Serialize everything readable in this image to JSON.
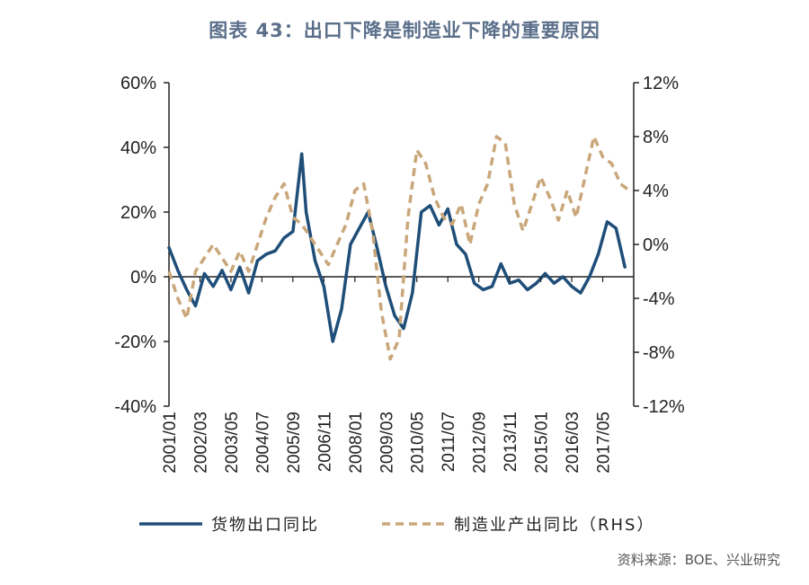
{
  "header": {
    "title": "图表 43：出口下降是制造业下降的重要原因"
  },
  "source": "资料来源：BOE、兴业研究",
  "colors": {
    "title": "#5b6f8a",
    "series1": "#1f4e79",
    "series2": "#c9a77a",
    "axis": "#222222"
  },
  "chart_data": {
    "type": "line",
    "title": "图表 43：出口下降是制造业下降的重要原因",
    "y_left": {
      "ylim": [
        -40,
        60
      ],
      "ticks": [
        "-40%",
        "-20%",
        "0%",
        "20%",
        "40%",
        "60%"
      ]
    },
    "y_right": {
      "ylim": [
        -12,
        12
      ],
      "ticks": [
        "-12%",
        "-8%",
        "-4%",
        "0%",
        "4%",
        "8%",
        "12%"
      ]
    },
    "x_ticks": [
      "2001/01",
      "2002/03",
      "2003/05",
      "2004/07",
      "2005/09",
      "2006/11",
      "2008/01",
      "2009/03",
      "2010/05",
      "2011/07",
      "2012/09",
      "2013/11",
      "2015/01",
      "2016/03",
      "2017/05"
    ],
    "legend": {
      "position": "bottom"
    },
    "series": [
      {
        "name": "货物出口同比",
        "axis": "left",
        "style": "solid",
        "x": [
          "2001/01",
          "2001/05",
          "2001/09",
          "2002/01",
          "2002/05",
          "2002/09",
          "2003/01",
          "2003/05",
          "2003/09",
          "2004/01",
          "2004/05",
          "2004/09",
          "2005/01",
          "2005/05",
          "2005/09",
          "2006/01",
          "2006/03",
          "2006/07",
          "2006/11",
          "2007/03",
          "2007/07",
          "2007/11",
          "2008/03",
          "2008/07",
          "2008/11",
          "2009/03",
          "2009/07",
          "2009/11",
          "2010/03",
          "2010/07",
          "2010/11",
          "2011/03",
          "2011/07",
          "2011/11",
          "2012/03",
          "2012/07",
          "2012/11",
          "2013/03",
          "2013/07",
          "2013/11",
          "2014/03",
          "2014/07",
          "2014/11",
          "2015/03",
          "2015/07",
          "2015/11",
          "2016/03",
          "2016/07",
          "2016/11",
          "2017/03",
          "2017/07",
          "2017/11",
          "2018/03"
        ],
        "values": [
          9,
          2,
          -4,
          -9,
          1,
          -3,
          2,
          -4,
          3,
          -5,
          5,
          7,
          8,
          12,
          14,
          38,
          20,
          5,
          -3,
          -20,
          -10,
          10,
          15,
          20,
          9,
          -3,
          -12,
          -16,
          -5,
          20,
          22,
          16,
          21,
          10,
          7,
          -2,
          -4,
          -3,
          4,
          -2,
          -1,
          -4,
          -2,
          1,
          -2,
          0,
          -3,
          -5,
          0,
          7,
          17,
          15,
          3
        ]
      },
      {
        "name": "制造业产出同比（RHS）",
        "axis": "right",
        "style": "dashed",
        "x": [
          "2001/01",
          "2001/05",
          "2001/09",
          "2002/01",
          "2002/05",
          "2002/09",
          "2003/01",
          "2003/05",
          "2003/09",
          "2004/01",
          "2004/05",
          "2004/09",
          "2005/01",
          "2005/05",
          "2005/09",
          "2006/01",
          "2006/05",
          "2006/09",
          "2007/01",
          "2007/05",
          "2007/09",
          "2008/01",
          "2008/05",
          "2008/09",
          "2009/01",
          "2009/05",
          "2009/09",
          "2010/01",
          "2010/05",
          "2010/09",
          "2011/01",
          "2011/05",
          "2011/09",
          "2012/01",
          "2012/05",
          "2012/09",
          "2013/01",
          "2013/05",
          "2013/09",
          "2014/01",
          "2014/05",
          "2014/09",
          "2015/01",
          "2015/05",
          "2015/09",
          "2016/01",
          "2016/05",
          "2016/09",
          "2017/01",
          "2017/05",
          "2017/09",
          "2018/01",
          "2018/05"
        ],
        "values": [
          -2,
          -4,
          -5.5,
          -2,
          -1,
          0,
          -1,
          -2,
          -0.5,
          -2,
          0,
          2,
          3.5,
          4.5,
          2,
          1.5,
          0.5,
          -0.5,
          -1.5,
          0,
          1.5,
          4,
          4.5,
          1,
          -5,
          -8.5,
          -7,
          2,
          7,
          6,
          3.5,
          2,
          1.5,
          3,
          0,
          3,
          4.5,
          8,
          7.5,
          3,
          1,
          3,
          5,
          3.5,
          1.8,
          4,
          2,
          5,
          8,
          6.5,
          6,
          4.5,
          4
        ]
      }
    ]
  }
}
